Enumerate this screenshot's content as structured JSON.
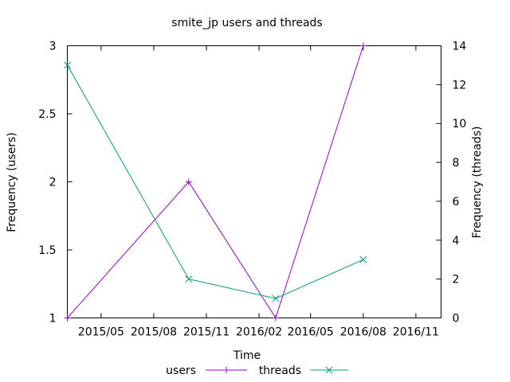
{
  "chart_data": {
    "type": "line",
    "title": "smite_jp users and threads",
    "xlabel": "Time",
    "ylabel": "Frequency (users)",
    "y2label": "Frequency (threads)",
    "x_ticks": [
      "2015/05",
      "2015/08",
      "2015/11",
      "2016/02",
      "2016/05",
      "2016/08",
      "2016/11"
    ],
    "y_ticks": [
      "1",
      "1.5",
      "2",
      "2.5",
      "3"
    ],
    "y2_ticks": [
      "0",
      "2",
      "4",
      "6",
      "8",
      "10",
      "12",
      "14"
    ],
    "xlim": [
      "2015-03-03",
      "2016-12-15"
    ],
    "ylim": [
      1,
      3
    ],
    "y2lim": [
      0,
      14
    ],
    "grid": false,
    "legend_position": "bottom-center",
    "series": [
      {
        "name": "users",
        "axis": "left",
        "marker": "+",
        "color": "#9400D3",
        "x": [
          "2015-03-03",
          "2015-10-01",
          "2016-03-01",
          "2016-08-01"
        ],
        "y": [
          1,
          2,
          1,
          3
        ]
      },
      {
        "name": "threads",
        "axis": "right",
        "marker": "x",
        "color": "#009E73",
        "x": [
          "2015-03-03",
          "2015-10-01",
          "2016-03-01",
          "2016-08-01"
        ],
        "y": [
          13,
          2,
          1,
          3
        ]
      }
    ]
  }
}
